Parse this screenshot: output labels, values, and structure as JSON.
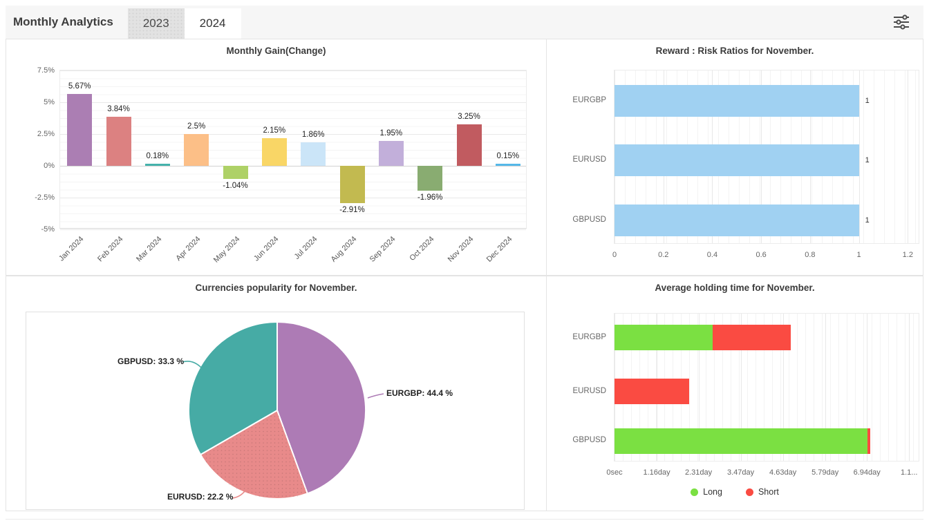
{
  "header": {
    "title": "Monthly Analytics",
    "tabs": [
      {
        "label": "2023",
        "active": false
      },
      {
        "label": "2024",
        "active": true
      }
    ],
    "icons": {
      "filter": "sliders-horizontal-icon"
    }
  },
  "colors": {
    "header_bg": "#f6f6f6",
    "panel_border": "#e4e4e4",
    "reward_bar": "#a0d1f2",
    "long_green": "#7be042",
    "short_red": "#fa4b42"
  },
  "chart_data": [
    {
      "id": "monthly_gain",
      "type": "bar",
      "title": "Monthly Gain(Change)",
      "categories": [
        "Jan 2024",
        "Feb 2024",
        "Mar 2024",
        "Apr 2024",
        "May 2024",
        "Jun 2024",
        "Jul 2024",
        "Aug 2024",
        "Sep 2024",
        "Oct 2024",
        "Nov 2024",
        "Dec 2024"
      ],
      "values": [
        5.67,
        3.84,
        0.18,
        2.5,
        -1.04,
        2.15,
        1.86,
        -2.91,
        1.95,
        -1.96,
        3.25,
        0.15
      ],
      "labels": [
        "5.67%",
        "3.84%",
        "0.18%",
        "2.5%",
        "-1.04%",
        "2.15%",
        "1.86%",
        "-2.91%",
        "1.95%",
        "-1.96%",
        "3.25%",
        "0.15%"
      ],
      "bar_colors": [
        "#ab7eb3",
        "#dc8181",
        "#45b2ab",
        "#fcbf87",
        "#aed167",
        "#f9d666",
        "#cbe5f8",
        "#c2ba50",
        "#c2afda",
        "#89ac71",
        "#c15b60",
        "#55b8e8"
      ],
      "dotted": [
        false,
        true,
        false,
        false,
        false,
        true,
        true,
        false,
        true,
        false,
        false,
        false
      ],
      "y_ticks": [
        "7.5%",
        "5%",
        "2.5%",
        "0%",
        "-2.5%",
        "-5%"
      ],
      "y_tick_values": [
        7.5,
        5,
        2.5,
        0,
        -2.5,
        -5
      ],
      "ylim": [
        -5,
        7.5
      ],
      "grid": true
    },
    {
      "id": "reward_risk",
      "type": "bar-horizontal",
      "title": "Reward : Risk Ratios for November.",
      "categories": [
        "EURGBP",
        "EURUSD",
        "GBPUSD"
      ],
      "values": [
        1,
        1,
        1
      ],
      "value_labels": [
        "1",
        "1",
        "1"
      ],
      "x_ticks": [
        "0",
        "0.2",
        "0.4",
        "0.6",
        "0.8",
        "1",
        "1.2"
      ],
      "x_tick_values": [
        0,
        0.2,
        0.4,
        0.6,
        0.8,
        1,
        1.2
      ],
      "xlim": [
        0,
        1.25
      ],
      "bar_color": "#a0d1f2",
      "grid": true
    },
    {
      "id": "currency_popularity",
      "type": "pie",
      "title": "Currencies popularity for November.",
      "slices": [
        {
          "label": "EURGBP",
          "value": 44.4,
          "text": "EURGBP: 44.4 %",
          "color": "#ad7bb5",
          "dotted": false
        },
        {
          "label": "EURUSD",
          "value": 22.2,
          "text": "EURUSD: 22.2 %",
          "color": "#e88a8a",
          "dotted": true
        },
        {
          "label": "GBPUSD",
          "value": 33.3,
          "text": "GBPUSD: 33.3 %",
          "color": "#46aba5",
          "dotted": false
        }
      ],
      "start_angle_deg": 0,
      "legend_position": "labels-with-leader-lines"
    },
    {
      "id": "holding_time",
      "type": "bar-horizontal-stacked",
      "title": "Average holding time for November.",
      "categories": [
        "EURGBP",
        "EURUSD",
        "GBPUSD"
      ],
      "series": [
        {
          "name": "Long",
          "color": "#7be042",
          "values_days": [
            2.7,
            0,
            6.95
          ]
        },
        {
          "name": "Short",
          "color": "#fa4b42",
          "values_days": [
            2.15,
            2.05,
            0.08
          ]
        }
      ],
      "x_ticks": [
        "0sec",
        "1.16day",
        "2.31day",
        "3.47day",
        "4.63day",
        "5.79day",
        "6.94day",
        "1.1..."
      ],
      "x_tick_values_days": [
        0,
        1.16,
        2.31,
        3.47,
        4.63,
        5.79,
        6.94,
        8.1
      ],
      "xlim_days": [
        0,
        8.4
      ],
      "legend": [
        "Long",
        "Short"
      ],
      "legend_position": "bottom-center",
      "grid": true
    }
  ]
}
